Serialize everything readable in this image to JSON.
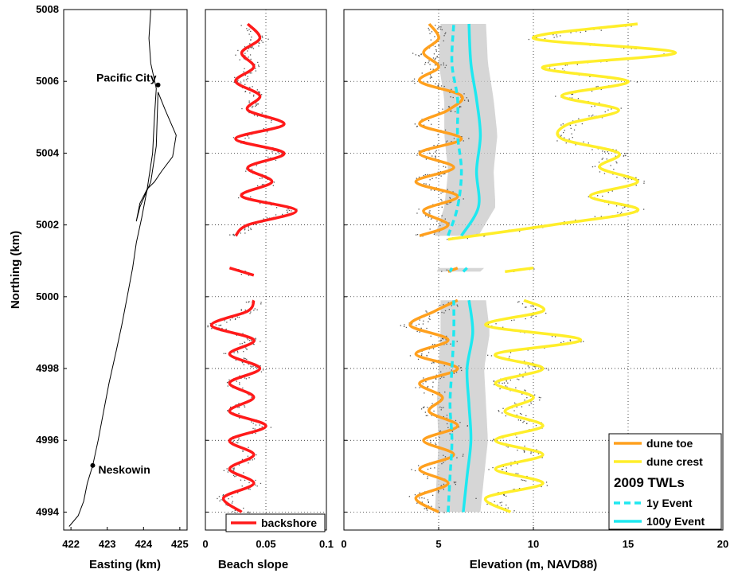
{
  "chart_data": [
    {
      "type": "line",
      "panel": "map",
      "xlabel": "Easting (km)",
      "ylabel": "Northing (km)",
      "xlim": [
        421.8,
        425.2
      ],
      "ylim": [
        4993.5,
        5008
      ],
      "xticks": [
        "422",
        "423",
        "424",
        "425"
      ],
      "yticks": [
        "4994",
        "4996",
        "4998",
        "5000",
        "5002",
        "5004",
        "5006",
        "5008"
      ],
      "grid": false,
      "coastline": {
        "x": [
          424.2,
          424.15,
          424.2,
          424.35,
          424.3,
          424.25,
          424.1,
          423.95,
          423.8,
          423.7,
          423.55,
          423.4,
          423.25,
          423.05,
          422.9,
          422.75,
          422.6,
          422.45,
          422.35,
          422.2,
          421.95
        ],
        "y": [
          5008,
          5007.2,
          5006.5,
          5005.8,
          5005,
          5004,
          5003,
          5002.2,
          5001.5,
          5000.8,
          5000,
          4999.2,
          4998.5,
          4997.6,
          4996.8,
          4996,
          4995.3,
          4994.8,
          4994.3,
          4993.9,
          4993.6
        ]
      },
      "estuary": {
        "x": [
          424.4,
          424.6,
          424.9,
          424.8,
          424.5,
          424.3,
          424.1,
          423.9,
          423.8,
          423.9,
          424.2,
          424.35,
          424.4
        ],
        "y": [
          5005.7,
          5005.2,
          5004.5,
          5003.9,
          5003.5,
          5003.2,
          5003,
          5002.6,
          5002.1,
          5002.5,
          5003.2,
          5004.2,
          5005.7
        ]
      },
      "annotations": [
        {
          "text": "Pacific City",
          "x": 424.4,
          "y": 5005.9
        },
        {
          "text": "Neskowin",
          "x": 422.6,
          "y": 4995.3
        }
      ]
    },
    {
      "type": "line",
      "panel": "slope",
      "xlabel": "Beach slope",
      "xlim": [
        0,
        0.1
      ],
      "ylim": [
        4993.5,
        5008
      ],
      "xticks": [
        "0",
        "0.05",
        "0.1"
      ],
      "grid": true,
      "legend": {
        "position": "bottom",
        "entries": [
          "backshore"
        ]
      },
      "series": [
        {
          "name": "backshore",
          "color": "#ff1a1a",
          "segments": [
            {
              "y": [
                4994.0,
                4994.4,
                4994.8,
                4995.2,
                4995.6,
                4996.0,
                4996.4,
                4996.8,
                4997.2,
                4997.6,
                4998.0,
                4998.4,
                4998.8,
                4999.2,
                4999.6,
                4999.9
              ],
              "x": [
                0.03,
                0.015,
                0.04,
                0.02,
                0.04,
                0.02,
                0.05,
                0.02,
                0.04,
                0.02,
                0.045,
                0.02,
                0.04,
                0.005,
                0.035,
                0.04
              ]
            },
            {
              "y": [
                5000.6,
                5000.8
              ],
              "x": [
                0.04,
                0.02
              ]
            },
            {
              "y": [
                5001.7,
                5002.0,
                5002.4,
                5002.8,
                5003.2,
                5003.6,
                5004.0,
                5004.4,
                5004.8,
                5005.2,
                5005.6,
                5006.0,
                5006.4,
                5006.8,
                5007.2,
                5007.6
              ],
              "x": [
                0.025,
                0.035,
                0.075,
                0.03,
                0.055,
                0.035,
                0.065,
                0.025,
                0.065,
                0.035,
                0.045,
                0.025,
                0.04,
                0.03,
                0.045,
                0.035
              ]
            }
          ]
        }
      ]
    },
    {
      "type": "line",
      "panel": "elevation",
      "xlabel": "Elevation (m, NAVD88)",
      "xlim": [
        0,
        20
      ],
      "ylim": [
        4993.5,
        5008
      ],
      "xticks": [
        "0",
        "5",
        "10",
        "15",
        "20"
      ],
      "grid": true,
      "legend": {
        "position": "bottom-right",
        "title": "2009 TWLs"
      },
      "series": [
        {
          "name": "dune toe",
          "color": "#ffa01e",
          "dash": false,
          "segments": [
            {
              "y": [
                4994.0,
                4994.4,
                4994.8,
                4995.2,
                4995.6,
                4996.0,
                4996.4,
                4996.8,
                4997.2,
                4997.6,
                4998.0,
                4998.4,
                4998.8,
                4999.2,
                4999.6,
                4999.9
              ],
              "x": [
                5.0,
                3.8,
                5.5,
                4.0,
                5.8,
                4.2,
                6.0,
                4.5,
                5.2,
                4.0,
                6.0,
                3.8,
                5.5,
                3.5,
                4.8,
                6.0
              ]
            },
            {
              "y": [
                5000.7,
                5000.8
              ],
              "x": [
                5.5,
                6.0
              ]
            },
            {
              "y": [
                5001.7,
                5002.0,
                5002.4,
                5002.8,
                5003.2,
                5003.6,
                5004.0,
                5004.4,
                5004.8,
                5005.2,
                5005.6,
                5006.0,
                5006.4,
                5006.8,
                5007.2,
                5007.6
              ],
              "x": [
                4.0,
                5.5,
                4.2,
                6.0,
                3.8,
                5.8,
                4.0,
                6.2,
                4.0,
                5.5,
                6.2,
                4.0,
                5.0,
                4.2,
                5.0,
                4.5
              ]
            }
          ]
        },
        {
          "name": "dune crest",
          "color": "#ffee2a",
          "dash": false,
          "segments": [
            {
              "y": [
                4994.0,
                4994.4,
                4994.8,
                4995.2,
                4995.6,
                4996.0,
                4996.4,
                4996.8,
                4997.2,
                4997.6,
                4998.0,
                4998.4,
                4998.8,
                4999.2,
                4999.6,
                4999.9
              ],
              "x": [
                8.8,
                7.5,
                10.5,
                8.0,
                10.5,
                8.0,
                10.5,
                8.5,
                10.0,
                8.0,
                10.5,
                8.0,
                12.5,
                7.5,
                10.5,
                9.5
              ]
            },
            {
              "y": [
                5000.7,
                5000.8
              ],
              "x": [
                8.5,
                10.0
              ]
            },
            {
              "y": [
                5001.6,
                5002.0,
                5002.4,
                5002.8,
                5003.2,
                5003.6,
                5004.0,
                5004.4,
                5004.8,
                5005.2,
                5005.6,
                5006.0,
                5006.4,
                5006.8,
                5007.2,
                5007.6
              ],
              "x": [
                5.5,
                11.0,
                15.5,
                13.0,
                15.5,
                13.5,
                14.5,
                11.5,
                11.8,
                14.5,
                11.5,
                15.0,
                10.5,
                17.5,
                10.0,
                15.5
              ]
            }
          ]
        },
        {
          "name": "1y Event",
          "color": "#1ee8f0",
          "dash": true,
          "segments": [
            {
              "y": [
                4994.0,
                4995.0,
                4996.0,
                4997.0,
                4998.0,
                4999.0,
                4999.9
              ],
              "x": [
                5.5,
                5.6,
                5.7,
                5.6,
                5.7,
                5.8,
                5.8
              ]
            },
            {
              "y": [
                5000.7,
                5000.8
              ],
              "x": [
                5.6,
                5.7
              ]
            },
            {
              "y": [
                5001.7,
                5002.5,
                5003.5,
                5004.5,
                5005.5,
                5006.5,
                5007.6
              ],
              "x": [
                5.5,
                6.0,
                6.2,
                6.0,
                6.0,
                5.7,
                5.8
              ]
            }
          ]
        },
        {
          "name": "100y Event",
          "color": "#1ee8f0",
          "dash": false,
          "segments": [
            {
              "y": [
                4994.0,
                4995.0,
                4996.0,
                4997.0,
                4998.0,
                4999.0,
                4999.9
              ],
              "x": [
                6.3,
                6.5,
                6.7,
                6.6,
                6.5,
                6.8,
                6.6
              ]
            },
            {
              "y": [
                5000.7,
                5000.8
              ],
              "x": [
                6.3,
                6.5
              ]
            },
            {
              "y": [
                5001.7,
                5002.5,
                5003.5,
                5004.5,
                5005.5,
                5006.5,
                5007.6
              ],
              "x": [
                6.2,
                7.1,
                7.0,
                7.2,
                7.0,
                6.7,
                6.6
              ]
            }
          ]
        }
      ]
    }
  ]
}
